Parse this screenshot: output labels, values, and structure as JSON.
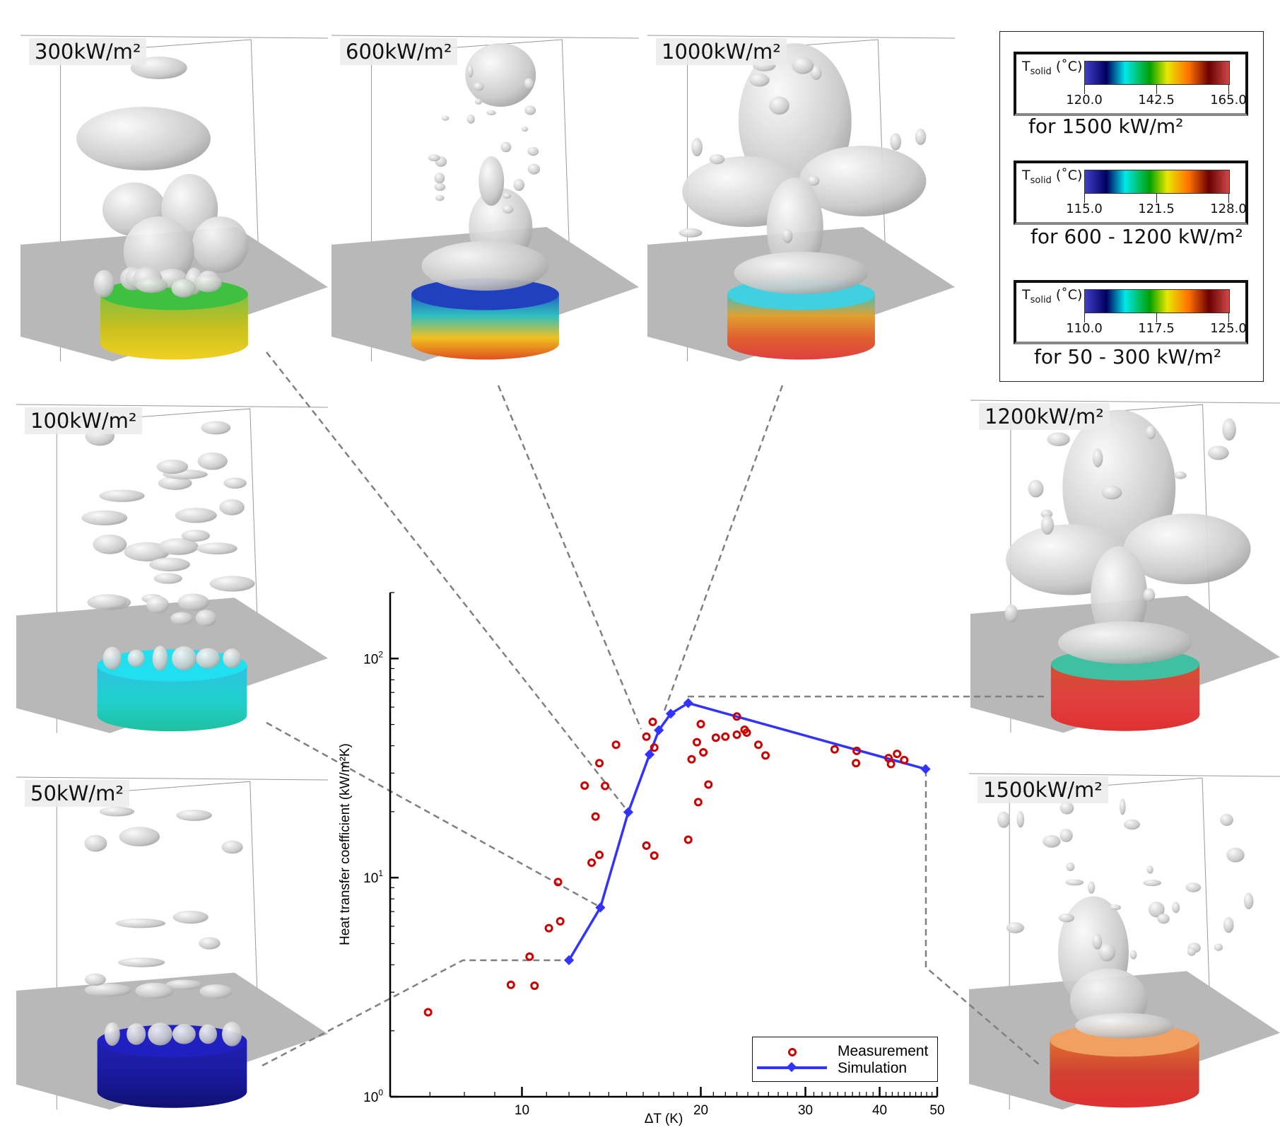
{
  "panels": [
    {
      "id": "300",
      "label": "300kW/m²"
    },
    {
      "id": "600",
      "label": "600kW/m²"
    },
    {
      "id": "1000",
      "label": "1000kW/m²"
    },
    {
      "id": "100",
      "label": "100kW/m²"
    },
    {
      "id": "50",
      "label": "50kW/m²"
    },
    {
      "id": "1200",
      "label": "1200kW/m²"
    },
    {
      "id": "1500",
      "label": "1500kW/m²"
    }
  ],
  "colorbars": [
    {
      "title": "T",
      "sub": "solid",
      "unit": " (˚C)",
      "ticks": [
        "120.0",
        "142.5",
        "165.0"
      ],
      "caption": "for 1500 kW/m²"
    },
    {
      "title": "T",
      "sub": "solid",
      "unit": " (˚C)",
      "ticks": [
        "115.0",
        "121.5",
        "128.0"
      ],
      "caption": "for 600 - 1200 kW/m²"
    },
    {
      "title": "T",
      "sub": "solid",
      "unit": " (˚C)",
      "ticks": [
        "110.0",
        "117.5",
        "125.0"
      ],
      "caption": "for 50 - 300 kW/m²"
    }
  ],
  "chart_data": {
    "type": "scatter",
    "xlabel": "ΔT (K)",
    "ylabel": "Heat transfer coefficient (kW/m²K)",
    "xscale": "log",
    "yscale": "log",
    "xlim": [
      6,
      50
    ],
    "ylim": [
      1,
      200
    ],
    "xticks": [
      {
        "v": 10,
        "label": "10"
      },
      {
        "v": 20,
        "label": "20"
      },
      {
        "v": 30,
        "label": "30"
      },
      {
        "v": 40,
        "label": "40"
      },
      {
        "v": 50,
        "label": "50"
      }
    ],
    "yticks": [
      {
        "v": 1,
        "base": "10",
        "exp": "0"
      },
      {
        "v": 10,
        "base": "10",
        "exp": "1"
      },
      {
        "v": 100,
        "base": "10",
        "exp": "2"
      }
    ],
    "legend_position": "bottom-right",
    "colors": {
      "measurement": "#cc0000",
      "simulation": "#3333ff",
      "connector": "#808080"
    },
    "series": [
      {
        "name": "Measurement",
        "style": "open-circle",
        "x": [
          6.95,
          9.58,
          10.5,
          10.3,
          11.1,
          11.6,
          11.5,
          13.1,
          13.5,
          13.3,
          12.75,
          13.8,
          13.5,
          14.4,
          16.2,
          16.7,
          16.2,
          16.6,
          16.7,
          19.05,
          19.3,
          19.7,
          19.8,
          20.0,
          20.2,
          20.6,
          21.2,
          22.0,
          23.0,
          23.0,
          23.7,
          23.9,
          25.0,
          25.7,
          33.6,
          36.6,
          36.5,
          41.4,
          41.8,
          42.8,
          44.0
        ],
        "y": [
          2.43,
          3.24,
          3.21,
          4.36,
          5.88,
          6.32,
          9.55,
          11.7,
          12.7,
          19.0,
          26.3,
          26.2,
          33.3,
          40.4,
          14.0,
          12.6,
          44.0,
          51.4,
          39.2,
          14.9,
          34.7,
          41.5,
          22.1,
          50.2,
          37.3,
          26.6,
          43.5,
          44.0,
          44.9,
          54.4,
          47.3,
          45.9,
          40.4,
          36.1,
          38.5,
          37.9,
          33.3,
          35.1,
          33.0,
          36.7,
          34.4
        ]
      },
      {
        "name": "Simulation",
        "style": "line-diamond",
        "x": [
          12.0,
          13.55,
          15.1,
          16.4,
          17.0,
          17.8,
          19.05,
          47.8
        ],
        "y": [
          4.2,
          7.3,
          19.9,
          36.5,
          47.1,
          56.0,
          62.6,
          31.3
        ]
      }
    ]
  }
}
